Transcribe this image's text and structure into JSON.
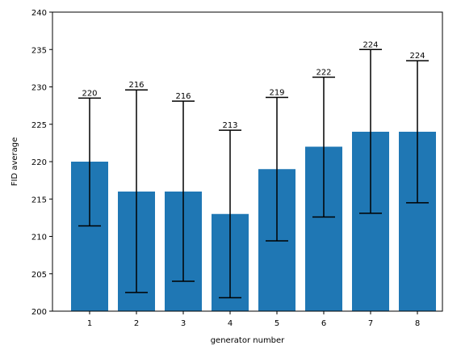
{
  "chart_data": {
    "type": "bar",
    "categories": [
      "1",
      "2",
      "3",
      "4",
      "5",
      "6",
      "7",
      "8"
    ],
    "values": [
      220,
      216,
      216,
      213,
      219,
      222,
      224,
      224
    ],
    "error_low": [
      211.4,
      202.5,
      204.0,
      201.8,
      209.4,
      212.6,
      213.1,
      214.5
    ],
    "error_high": [
      228.5,
      229.6,
      228.1,
      224.2,
      228.6,
      231.3,
      235.0,
      233.5
    ],
    "value_labels": [
      "220",
      "216",
      "216",
      "213",
      "219",
      "222",
      "224",
      "224"
    ],
    "xlabel": "generator number",
    "ylabel": "FID average",
    "ylim": [
      200,
      240
    ],
    "yticks": [
      "200",
      "205",
      "210",
      "215",
      "220",
      "225",
      "230",
      "235",
      "240"
    ],
    "grid": false,
    "colors": {
      "bar": "#1f77b4",
      "error": "#000000"
    }
  }
}
